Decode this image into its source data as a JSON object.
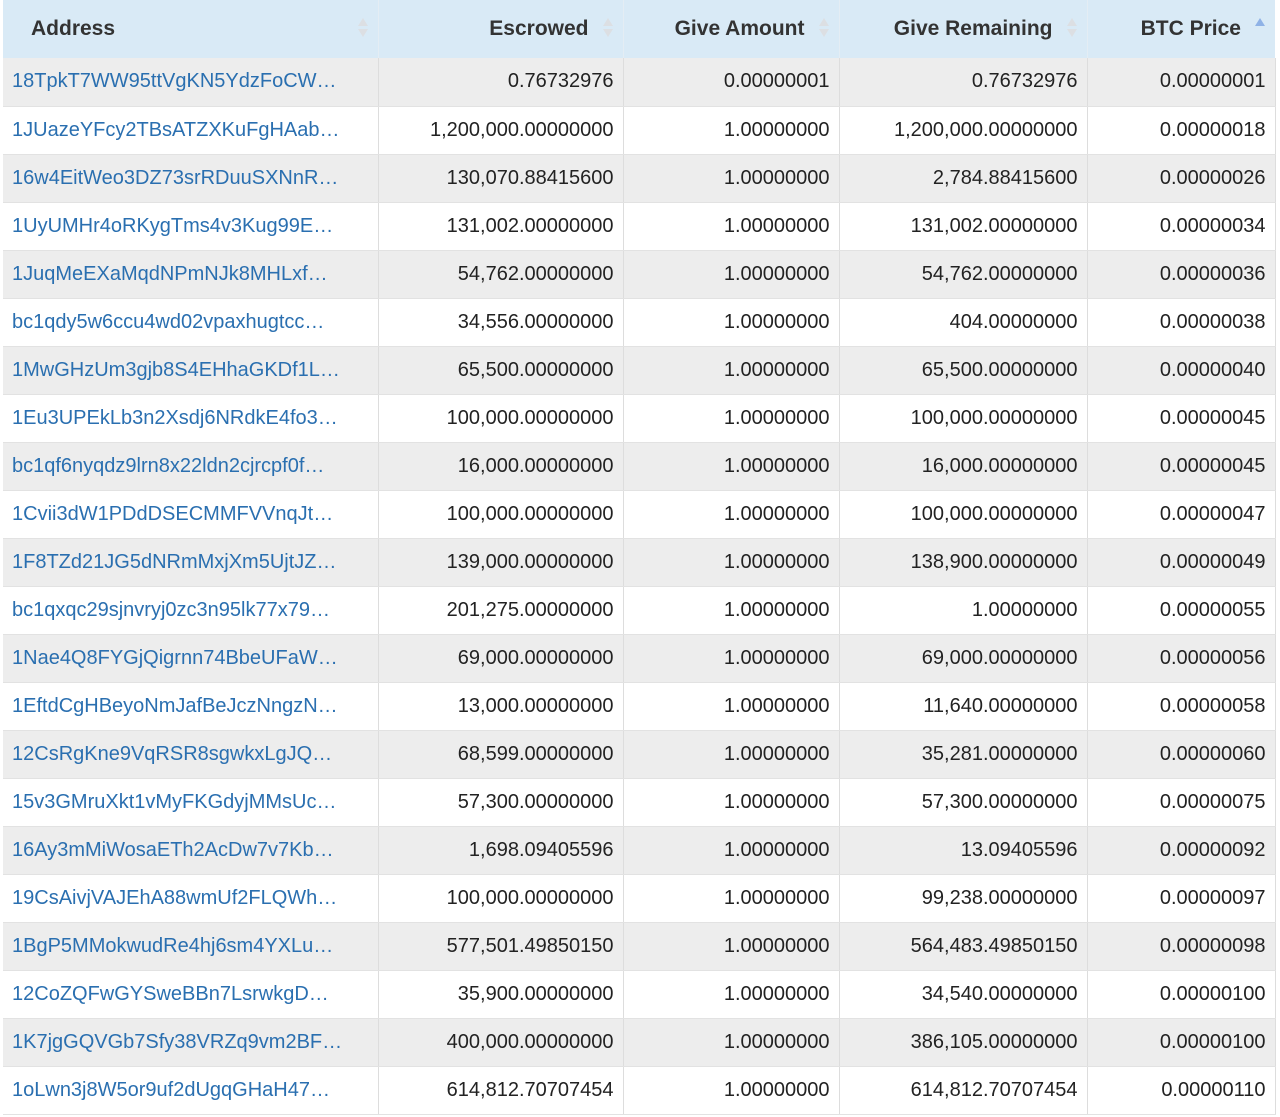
{
  "table": {
    "headers": {
      "address": "Address",
      "escrowed": "Escrowed",
      "give_amount": "Give Amount",
      "give_remaining": "Give Remaining",
      "btc_price": "BTC Price"
    },
    "sort": {
      "column": "BTC Price",
      "direction": "ascending"
    },
    "colors": {
      "header_bg": "#d9eaf6",
      "link": "#2a6fb0",
      "row_alt": "#ededed",
      "sort_active": "#8fb2e6"
    },
    "rows": [
      {
        "address": "18TpkT7WW95ttVgKN5YdzFoCW…",
        "escrowed": "0.76732976",
        "give_amount": "0.00000001",
        "give_remaining": "0.76732976",
        "btc_price": "0.00000001"
      },
      {
        "address": "1JUazeYFcy2TBsATZXKuFgHAab…",
        "escrowed": "1,200,000.00000000",
        "give_amount": "1.00000000",
        "give_remaining": "1,200,000.00000000",
        "btc_price": "0.00000018"
      },
      {
        "address": "16w4EitWeo3DZ73srRDuuSXNnR…",
        "escrowed": "130,070.88415600",
        "give_amount": "1.00000000",
        "give_remaining": "2,784.88415600",
        "btc_price": "0.00000026"
      },
      {
        "address": "1UyUMHr4oRKygTms4v3Kug99E…",
        "escrowed": "131,002.00000000",
        "give_amount": "1.00000000",
        "give_remaining": "131,002.00000000",
        "btc_price": "0.00000034"
      },
      {
        "address": "1JuqMeEXaMqdNPmNJk8MHLxf…",
        "escrowed": "54,762.00000000",
        "give_amount": "1.00000000",
        "give_remaining": "54,762.00000000",
        "btc_price": "0.00000036"
      },
      {
        "address": "bc1qdy5w6ccu4wd02vpaxhugtcc…",
        "escrowed": "34,556.00000000",
        "give_amount": "1.00000000",
        "give_remaining": "404.00000000",
        "btc_price": "0.00000038"
      },
      {
        "address": "1MwGHzUm3gjb8S4EHhaGKDf1L…",
        "escrowed": "65,500.00000000",
        "give_amount": "1.00000000",
        "give_remaining": "65,500.00000000",
        "btc_price": "0.00000040"
      },
      {
        "address": "1Eu3UPEkLb3n2Xsdj6NRdkE4fo3…",
        "escrowed": "100,000.00000000",
        "give_amount": "1.00000000",
        "give_remaining": "100,000.00000000",
        "btc_price": "0.00000045"
      },
      {
        "address": "bc1qf6nyqdz9lrn8x22ldn2cjrcpf0f…",
        "escrowed": "16,000.00000000",
        "give_amount": "1.00000000",
        "give_remaining": "16,000.00000000",
        "btc_price": "0.00000045"
      },
      {
        "address": "1Cvii3dW1PDdDSECMMFVVnqJt…",
        "escrowed": "100,000.00000000",
        "give_amount": "1.00000000",
        "give_remaining": "100,000.00000000",
        "btc_price": "0.00000047"
      },
      {
        "address": "1F8TZd21JG5dNRmMxjXm5UjtJZ…",
        "escrowed": "139,000.00000000",
        "give_amount": "1.00000000",
        "give_remaining": "138,900.00000000",
        "btc_price": "0.00000049"
      },
      {
        "address": "bc1qxqc29sjnvryj0zc3n95lk77x79…",
        "escrowed": "201,275.00000000",
        "give_amount": "1.00000000",
        "give_remaining": "1.00000000",
        "btc_price": "0.00000055"
      },
      {
        "address": "1Nae4Q8FYGjQigrnn74BbeUFaW…",
        "escrowed": "69,000.00000000",
        "give_amount": "1.00000000",
        "give_remaining": "69,000.00000000",
        "btc_price": "0.00000056"
      },
      {
        "address": "1EftdCgHBeyoNmJafBeJczNngzN…",
        "escrowed": "13,000.00000000",
        "give_amount": "1.00000000",
        "give_remaining": "11,640.00000000",
        "btc_price": "0.00000058"
      },
      {
        "address": "12CsRgKne9VqRSR8sgwkxLgJQ…",
        "escrowed": "68,599.00000000",
        "give_amount": "1.00000000",
        "give_remaining": "35,281.00000000",
        "btc_price": "0.00000060"
      },
      {
        "address": "15v3GMruXkt1vMyFKGdyjMMsUc…",
        "escrowed": "57,300.00000000",
        "give_amount": "1.00000000",
        "give_remaining": "57,300.00000000",
        "btc_price": "0.00000075"
      },
      {
        "address": "16Ay3mMiWosaETh2AcDw7v7Kb…",
        "escrowed": "1,698.09405596",
        "give_amount": "1.00000000",
        "give_remaining": "13.09405596",
        "btc_price": "0.00000092"
      },
      {
        "address": "19CsAivjVAJEhA88wmUf2FLQWh…",
        "escrowed": "100,000.00000000",
        "give_amount": "1.00000000",
        "give_remaining": "99,238.00000000",
        "btc_price": "0.00000097"
      },
      {
        "address": "1BgP5MMokwudRe4hj6sm4YXLu…",
        "escrowed": "577,501.49850150",
        "give_amount": "1.00000000",
        "give_remaining": "564,483.49850150",
        "btc_price": "0.00000098"
      },
      {
        "address": "12CoZQFwGYSweBBn7LsrwkgD…",
        "escrowed": "35,900.00000000",
        "give_amount": "1.00000000",
        "give_remaining": "34,540.00000000",
        "btc_price": "0.00000100"
      },
      {
        "address": "1K7jgGQVGb7Sfy38VRZq9vm2BF…",
        "escrowed": "400,000.00000000",
        "give_amount": "1.00000000",
        "give_remaining": "386,105.00000000",
        "btc_price": "0.00000100"
      },
      {
        "address": "1oLwn3j8W5or9uf2dUgqGHaH47…",
        "escrowed": "614,812.70707454",
        "give_amount": "1.00000000",
        "give_remaining": "614,812.70707454",
        "btc_price": "0.00000110"
      }
    ]
  }
}
